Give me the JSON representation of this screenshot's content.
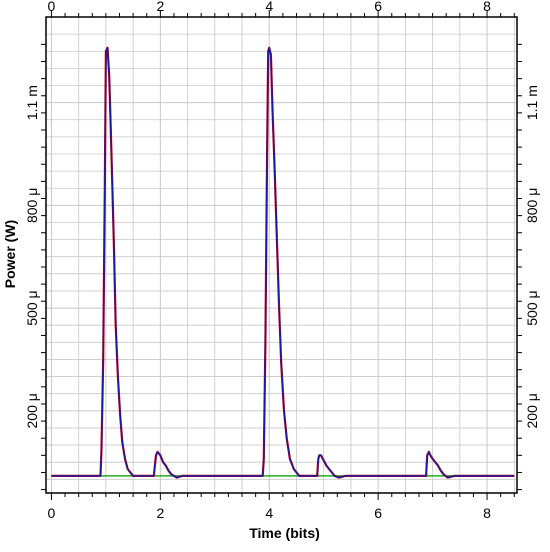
{
  "chart_data": {
    "type": "line",
    "xlabel": "Time (bits)",
    "ylabel": "Power (W)",
    "xlim": [
      -0.1,
      8.55
    ],
    "ylim": [
      -4e-05,
      0.00135
    ],
    "x_ticks": [
      0,
      2,
      4,
      6,
      8
    ],
    "x_tick_labels": [
      "0",
      "2",
      "4",
      "6",
      "8"
    ],
    "y_ticks": [
      0.0002,
      0.0005,
      0.0008,
      0.0011
    ],
    "y_tick_labels": [
      "200 μ",
      "500 μ",
      "800 μ",
      "1.1 m"
    ],
    "grid": true,
    "series": [
      {
        "color": "#1a1aa0",
        "x": [
          0,
          0.9,
          0.92,
          0.95,
          0.98,
          1.0,
          1.03,
          1.06,
          1.09,
          1.12,
          1.15,
          1.18,
          1.22,
          1.26,
          1.3,
          1.35,
          1.4,
          1.5,
          1.6,
          1.88,
          1.92,
          1.95,
          2.0,
          2.05,
          2.1,
          2.15,
          2.2,
          2.3,
          2.4,
          2.5,
          3.88,
          3.9,
          3.93,
          3.96,
          3.98,
          4.0,
          4.03,
          4.06,
          4.1,
          4.14,
          4.18,
          4.22,
          4.27,
          4.32,
          4.38,
          4.45,
          4.55,
          4.88,
          4.9,
          4.92,
          4.95,
          5.0,
          5.05,
          5.1,
          5.15,
          5.2,
          5.28,
          5.4,
          6.88,
          6.9,
          6.93,
          6.96,
          7.0,
          7.05,
          7.1,
          7.15,
          7.2,
          7.28,
          7.4,
          8.5
        ],
        "y": [
          1e-05,
          1e-05,
          9e-05,
          0.00035,
          0.00085,
          0.00125,
          0.00126,
          0.00118,
          0.00102,
          0.00085,
          0.00066,
          0.00045,
          0.0003,
          0.00019,
          0.00011,
          6e-05,
          3e-05,
          1e-05,
          1e-05,
          1e-05,
          7e-05,
          8e-05,
          7e-05,
          5e-05,
          4e-05,
          2.5e-05,
          1.5e-05,
          5e-06,
          1e-05,
          1e-05,
          1e-05,
          6e-05,
          0.0004,
          0.00095,
          0.00125,
          0.00126,
          0.00124,
          0.00108,
          0.0009,
          0.0007,
          0.00051,
          0.00034,
          0.0002,
          0.00012,
          6e-05,
          3e-05,
          1e-05,
          1e-05,
          6e-05,
          7e-05,
          7e-05,
          5.5e-05,
          4e-05,
          3e-05,
          2e-05,
          1e-05,
          5e-06,
          1e-05,
          1e-05,
          7e-05,
          8e-05,
          7e-05,
          6e-05,
          5e-05,
          4e-05,
          2.5e-05,
          1.5e-05,
          5e-06,
          1e-05,
          1e-05
        ]
      }
    ],
    "colors": {
      "trace": "#1a1aa0",
      "trace_shadow": "#cc0000",
      "baseline": "#22aa22",
      "grid": "#c8c8c8",
      "frame": "#000000"
    }
  }
}
